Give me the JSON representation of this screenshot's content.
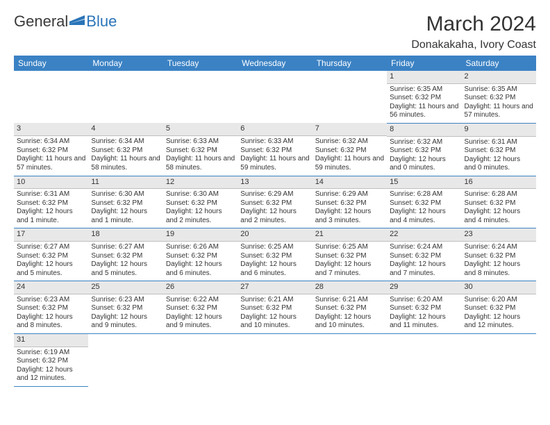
{
  "brand": {
    "left": "General",
    "right": "Blue",
    "logo_color": "#2a74b8"
  },
  "title": "March 2024",
  "subtitle": "Donakakaha, Ivory Coast",
  "colors": {
    "header_bg": "#3b82c4",
    "header_text": "#ffffff",
    "row_border": "#3b82c4",
    "daynum_bg": "#e8e8e8",
    "daynum_border": "#bfbfbf",
    "text": "#333333",
    "page_bg": "#ffffff"
  },
  "fontsize": {
    "title": 30,
    "subtitle": 16,
    "daynum": 11,
    "body": 10,
    "header": 12
  },
  "calendar": {
    "columns": [
      "Sunday",
      "Monday",
      "Tuesday",
      "Wednesday",
      "Thursday",
      "Friday",
      "Saturday"
    ],
    "weeks": [
      [
        null,
        null,
        null,
        null,
        null,
        {
          "n": "1",
          "sr": "Sunrise: 6:35 AM",
          "ss": "Sunset: 6:32 PM",
          "dl": "Daylight: 11 hours and 56 minutes."
        },
        {
          "n": "2",
          "sr": "Sunrise: 6:35 AM",
          "ss": "Sunset: 6:32 PM",
          "dl": "Daylight: 11 hours and 57 minutes."
        }
      ],
      [
        {
          "n": "3",
          "sr": "Sunrise: 6:34 AM",
          "ss": "Sunset: 6:32 PM",
          "dl": "Daylight: 11 hours and 57 minutes."
        },
        {
          "n": "4",
          "sr": "Sunrise: 6:34 AM",
          "ss": "Sunset: 6:32 PM",
          "dl": "Daylight: 11 hours and 58 minutes."
        },
        {
          "n": "5",
          "sr": "Sunrise: 6:33 AM",
          "ss": "Sunset: 6:32 PM",
          "dl": "Daylight: 11 hours and 58 minutes."
        },
        {
          "n": "6",
          "sr": "Sunrise: 6:33 AM",
          "ss": "Sunset: 6:32 PM",
          "dl": "Daylight: 11 hours and 59 minutes."
        },
        {
          "n": "7",
          "sr": "Sunrise: 6:32 AM",
          "ss": "Sunset: 6:32 PM",
          "dl": "Daylight: 11 hours and 59 minutes."
        },
        {
          "n": "8",
          "sr": "Sunrise: 6:32 AM",
          "ss": "Sunset: 6:32 PM",
          "dl": "Daylight: 12 hours and 0 minutes."
        },
        {
          "n": "9",
          "sr": "Sunrise: 6:31 AM",
          "ss": "Sunset: 6:32 PM",
          "dl": "Daylight: 12 hours and 0 minutes."
        }
      ],
      [
        {
          "n": "10",
          "sr": "Sunrise: 6:31 AM",
          "ss": "Sunset: 6:32 PM",
          "dl": "Daylight: 12 hours and 1 minute."
        },
        {
          "n": "11",
          "sr": "Sunrise: 6:30 AM",
          "ss": "Sunset: 6:32 PM",
          "dl": "Daylight: 12 hours and 1 minute."
        },
        {
          "n": "12",
          "sr": "Sunrise: 6:30 AM",
          "ss": "Sunset: 6:32 PM",
          "dl": "Daylight: 12 hours and 2 minutes."
        },
        {
          "n": "13",
          "sr": "Sunrise: 6:29 AM",
          "ss": "Sunset: 6:32 PM",
          "dl": "Daylight: 12 hours and 2 minutes."
        },
        {
          "n": "14",
          "sr": "Sunrise: 6:29 AM",
          "ss": "Sunset: 6:32 PM",
          "dl": "Daylight: 12 hours and 3 minutes."
        },
        {
          "n": "15",
          "sr": "Sunrise: 6:28 AM",
          "ss": "Sunset: 6:32 PM",
          "dl": "Daylight: 12 hours and 4 minutes."
        },
        {
          "n": "16",
          "sr": "Sunrise: 6:28 AM",
          "ss": "Sunset: 6:32 PM",
          "dl": "Daylight: 12 hours and 4 minutes."
        }
      ],
      [
        {
          "n": "17",
          "sr": "Sunrise: 6:27 AM",
          "ss": "Sunset: 6:32 PM",
          "dl": "Daylight: 12 hours and 5 minutes."
        },
        {
          "n": "18",
          "sr": "Sunrise: 6:27 AM",
          "ss": "Sunset: 6:32 PM",
          "dl": "Daylight: 12 hours and 5 minutes."
        },
        {
          "n": "19",
          "sr": "Sunrise: 6:26 AM",
          "ss": "Sunset: 6:32 PM",
          "dl": "Daylight: 12 hours and 6 minutes."
        },
        {
          "n": "20",
          "sr": "Sunrise: 6:25 AM",
          "ss": "Sunset: 6:32 PM",
          "dl": "Daylight: 12 hours and 6 minutes."
        },
        {
          "n": "21",
          "sr": "Sunrise: 6:25 AM",
          "ss": "Sunset: 6:32 PM",
          "dl": "Daylight: 12 hours and 7 minutes."
        },
        {
          "n": "22",
          "sr": "Sunrise: 6:24 AM",
          "ss": "Sunset: 6:32 PM",
          "dl": "Daylight: 12 hours and 7 minutes."
        },
        {
          "n": "23",
          "sr": "Sunrise: 6:24 AM",
          "ss": "Sunset: 6:32 PM",
          "dl": "Daylight: 12 hours and 8 minutes."
        }
      ],
      [
        {
          "n": "24",
          "sr": "Sunrise: 6:23 AM",
          "ss": "Sunset: 6:32 PM",
          "dl": "Daylight: 12 hours and 8 minutes."
        },
        {
          "n": "25",
          "sr": "Sunrise: 6:23 AM",
          "ss": "Sunset: 6:32 PM",
          "dl": "Daylight: 12 hours and 9 minutes."
        },
        {
          "n": "26",
          "sr": "Sunrise: 6:22 AM",
          "ss": "Sunset: 6:32 PM",
          "dl": "Daylight: 12 hours and 9 minutes."
        },
        {
          "n": "27",
          "sr": "Sunrise: 6:21 AM",
          "ss": "Sunset: 6:32 PM",
          "dl": "Daylight: 12 hours and 10 minutes."
        },
        {
          "n": "28",
          "sr": "Sunrise: 6:21 AM",
          "ss": "Sunset: 6:32 PM",
          "dl": "Daylight: 12 hours and 10 minutes."
        },
        {
          "n": "29",
          "sr": "Sunrise: 6:20 AM",
          "ss": "Sunset: 6:32 PM",
          "dl": "Daylight: 12 hours and 11 minutes."
        },
        {
          "n": "30",
          "sr": "Sunrise: 6:20 AM",
          "ss": "Sunset: 6:32 PM",
          "dl": "Daylight: 12 hours and 12 minutes."
        }
      ],
      [
        {
          "n": "31",
          "sr": "Sunrise: 6:19 AM",
          "ss": "Sunset: 6:32 PM",
          "dl": "Daylight: 12 hours and 12 minutes."
        },
        null,
        null,
        null,
        null,
        null,
        null
      ]
    ]
  }
}
